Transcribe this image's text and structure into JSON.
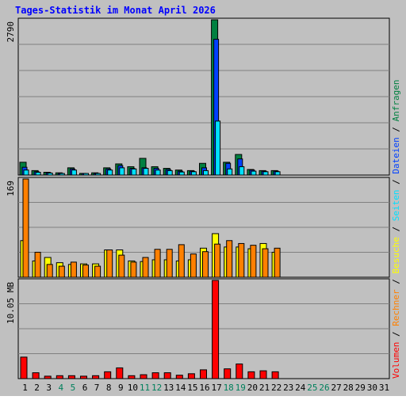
{
  "title": "Tages-Statistik im Monat April 2026",
  "colors": {
    "background": "#c0c0c0",
    "title": "#0000ff",
    "hits": "#008040",
    "files": "#0040ff",
    "pages": "#00e0ff",
    "visits": "#ffff00",
    "sites": "#ff8000",
    "kbytes": "#ff0000",
    "weekday_label": "#000000",
    "weekend_label": "#00805c"
  },
  "chart_data": [
    {
      "type": "bar",
      "panel": "top",
      "scale_label": "2790",
      "ylim": [
        0,
        2790
      ],
      "categories": [
        "1",
        "2",
        "3",
        "4",
        "5",
        "6",
        "7",
        "8",
        "9",
        "10",
        "11",
        "12",
        "13",
        "14",
        "15",
        "16",
        "17",
        "18",
        "19",
        "20",
        "21",
        "22",
        "23",
        "24",
        "25",
        "26",
        "27",
        "28",
        "29",
        "30",
        "31"
      ],
      "weekend_days": [
        "4",
        "5",
        "11",
        "12",
        "18",
        "19",
        "25",
        "26"
      ],
      "series": [
        {
          "name": "Anfragen",
          "color": "#008040",
          "values": [
            230,
            80,
            50,
            40,
            130,
            30,
            40,
            130,
            200,
            150,
            300,
            150,
            120,
            90,
            80,
            210,
            2790,
            230,
            370,
            100,
            80,
            80,
            0,
            0,
            0,
            0,
            0,
            0,
            0,
            0,
            0
          ]
        },
        {
          "name": "Dateien",
          "color": "#0040ff",
          "values": [
            140,
            60,
            40,
            30,
            110,
            20,
            30,
            110,
            170,
            120,
            130,
            120,
            100,
            70,
            70,
            130,
            2440,
            210,
            290,
            90,
            70,
            70,
            0,
            0,
            0,
            0,
            0,
            0,
            0,
            0,
            0
          ]
        },
        {
          "name": "Seiten",
          "color": "#00e0ff",
          "values": [
            90,
            50,
            35,
            25,
            90,
            15,
            25,
            90,
            130,
            110,
            120,
            90,
            80,
            55,
            60,
            80,
            970,
            110,
            150,
            70,
            60,
            60,
            0,
            0,
            0,
            0,
            0,
            0,
            0,
            0,
            0
          ]
        }
      ]
    },
    {
      "type": "bar",
      "panel": "middle",
      "scale_label": "169",
      "ylim": [
        0,
        169
      ],
      "categories": [
        "1",
        "2",
        "3",
        "4",
        "5",
        "6",
        "7",
        "8",
        "9",
        "10",
        "11",
        "12",
        "13",
        "14",
        "15",
        "16",
        "17",
        "18",
        "19",
        "20",
        "21",
        "22",
        "23",
        "24",
        "25",
        "26",
        "27",
        "28",
        "29",
        "30",
        "31"
      ],
      "series": [
        {
          "name": "Besuche",
          "color": "#ffff00",
          "values": [
            63,
            28,
            34,
            25,
            22,
            23,
            23,
            47,
            47,
            28,
            27,
            30,
            30,
            28,
            30,
            50,
            75,
            52,
            52,
            49,
            58,
            43,
            0,
            0,
            0,
            0,
            0,
            0,
            0,
            0,
            0
          ]
        },
        {
          "name": "Rechner",
          "color": "#ff8000",
          "values": [
            169,
            43,
            22,
            19,
            26,
            21,
            19,
            47,
            38,
            26,
            34,
            48,
            48,
            56,
            40,
            44,
            57,
            63,
            58,
            55,
            49,
            50,
            0,
            0,
            0,
            0,
            0,
            0,
            0,
            0,
            0
          ]
        }
      ]
    },
    {
      "type": "bar",
      "panel": "bottom",
      "scale_label": "10.05 MB",
      "ylim": [
        0,
        10.05
      ],
      "categories": [
        "1",
        "2",
        "3",
        "4",
        "5",
        "6",
        "7",
        "8",
        "9",
        "10",
        "11",
        "12",
        "13",
        "14",
        "15",
        "16",
        "17",
        "18",
        "19",
        "20",
        "21",
        "22",
        "23",
        "24",
        "25",
        "26",
        "27",
        "28",
        "29",
        "30",
        "31"
      ],
      "series": [
        {
          "name": "Volumen",
          "color": "#ff0000",
          "values": [
            2.2,
            0.6,
            0.25,
            0.3,
            0.3,
            0.25,
            0.3,
            0.7,
            1.1,
            0.3,
            0.4,
            0.6,
            0.6,
            0.35,
            0.5,
            0.9,
            10.05,
            1.0,
            1.5,
            0.7,
            0.8,
            0.7,
            0,
            0,
            0,
            0,
            0,
            0,
            0,
            0,
            0
          ]
        }
      ]
    }
  ],
  "legend": {
    "items": [
      "Volumen",
      "Rechner",
      "Besuche",
      "Seiten",
      "Dateien",
      "Anfragen"
    ],
    "separator": " / "
  }
}
